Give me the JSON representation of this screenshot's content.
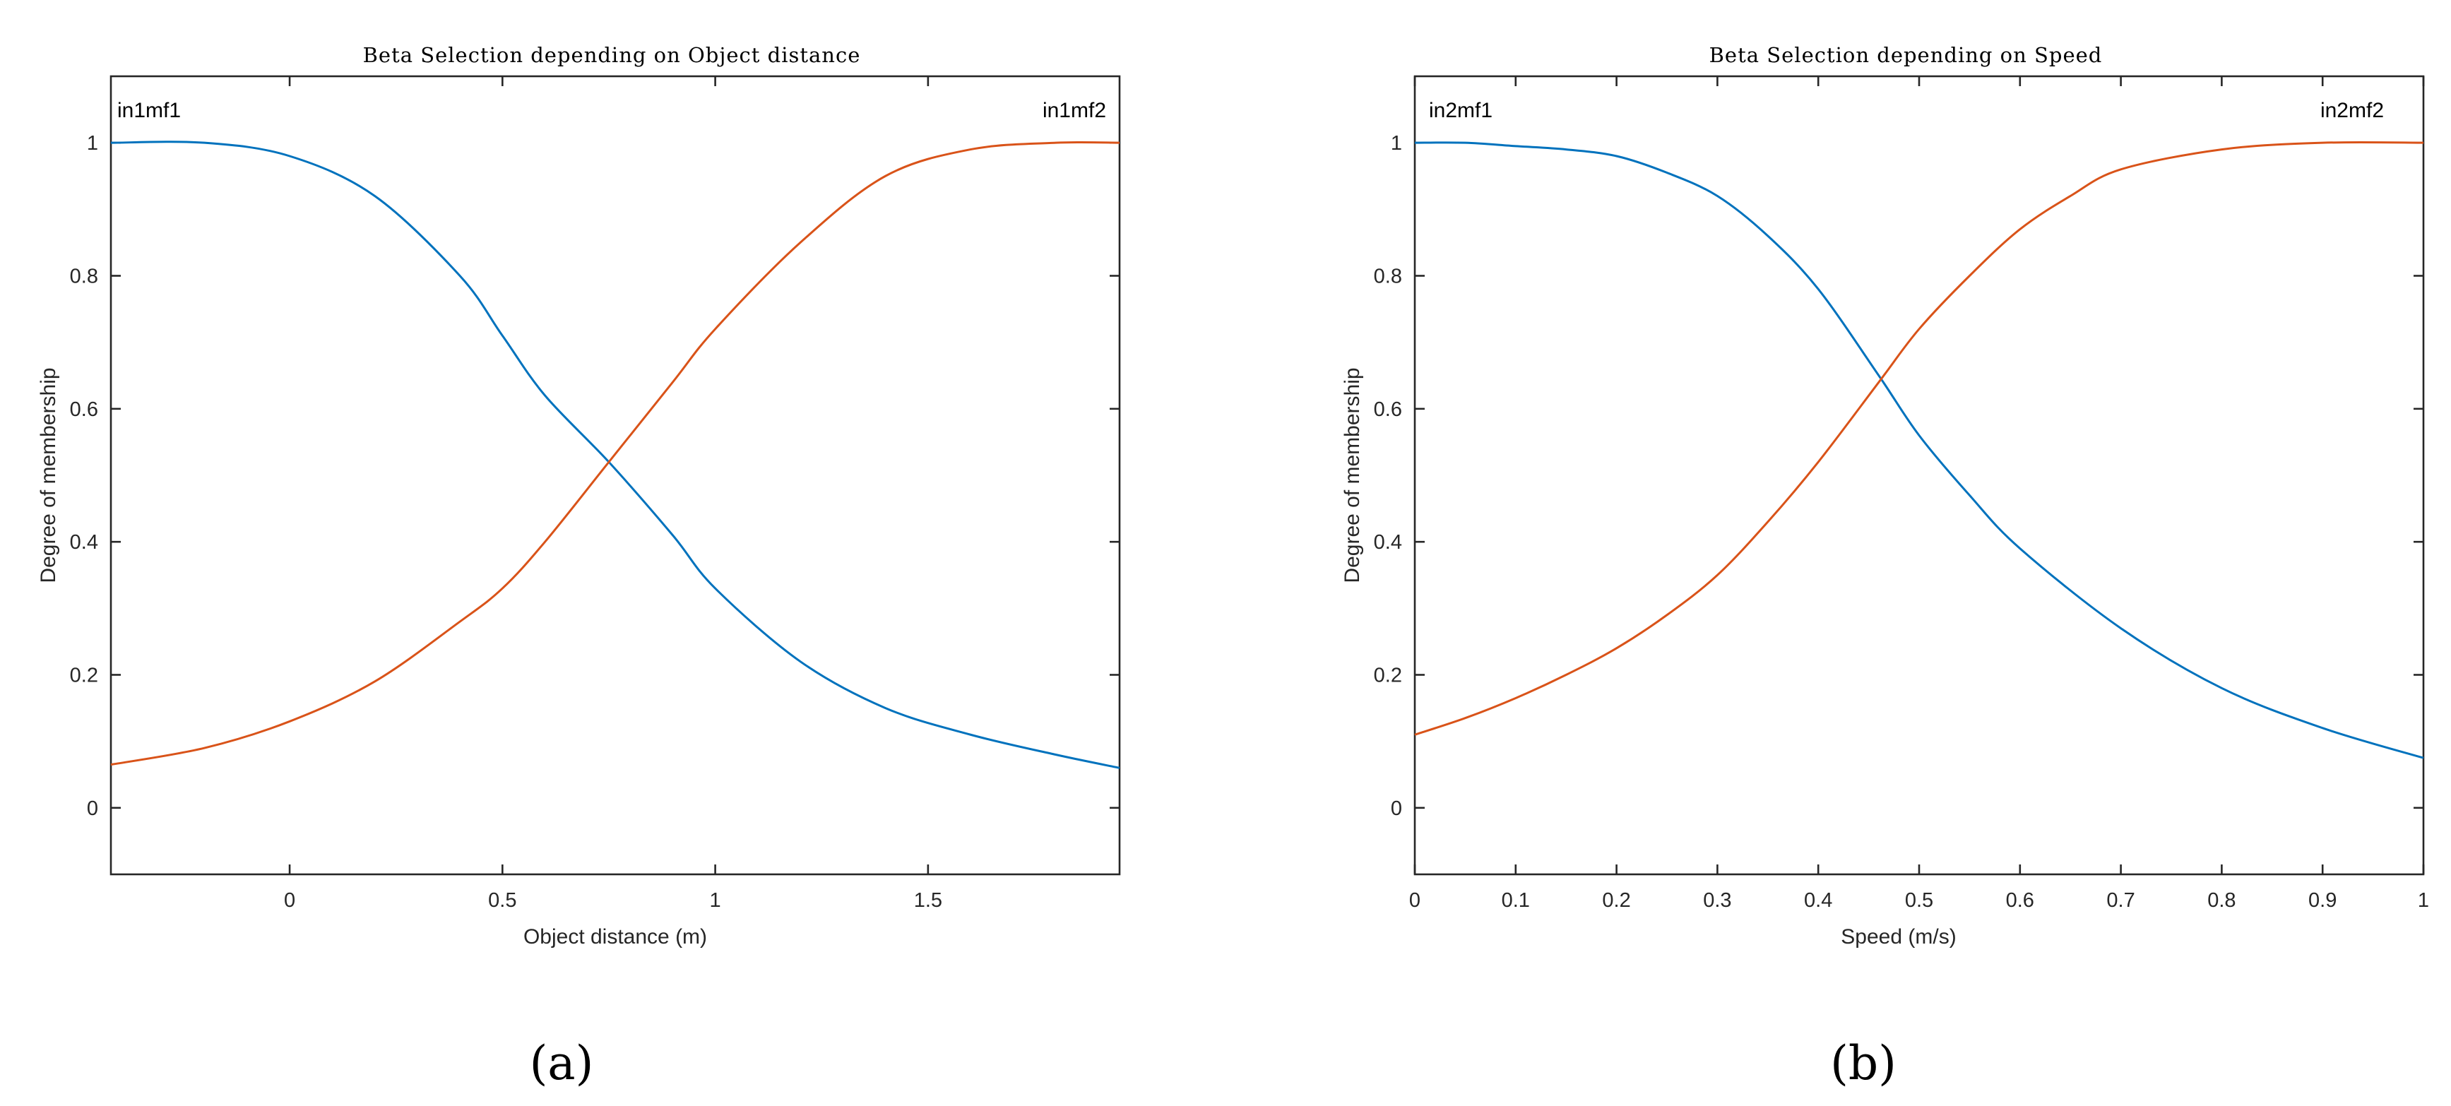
{
  "chart_data": [
    {
      "type": "line",
      "panel_label": "(a)",
      "title": "Beta Selection depending on Object distance",
      "xlabel": "Object distance (m)",
      "ylabel": "Degree of membership",
      "xlim": [
        -0.42,
        1.95
      ],
      "ylim": [
        -0.1,
        1.1
      ],
      "xticks": [
        0,
        0.5,
        1,
        1.5
      ],
      "xtick_labels": [
        "0",
        "0.5",
        "1",
        "1.5"
      ],
      "yticks": [
        0,
        0.2,
        0.4,
        0.6,
        0.8,
        1
      ],
      "ytick_labels": [
        "0",
        "0.2",
        "0.4",
        "0.6",
        "0.8",
        "1"
      ],
      "grid": false,
      "series": [
        {
          "name": "in1mf1",
          "color": "#0072BD",
          "x": [
            -0.42,
            -0.2,
            0,
            0.2,
            0.4,
            0.5,
            0.6,
            0.75,
            0.9,
            1.0,
            1.2,
            1.4,
            1.6,
            1.8,
            1.95
          ],
          "y": [
            1.0,
            1.0,
            0.98,
            0.92,
            0.8,
            0.71,
            0.62,
            0.52,
            0.41,
            0.33,
            0.22,
            0.15,
            0.11,
            0.08,
            0.06
          ]
        },
        {
          "name": "in1mf2",
          "color": "#D95319",
          "x": [
            -0.42,
            -0.2,
            0,
            0.2,
            0.4,
            0.5,
            0.6,
            0.75,
            0.9,
            1.0,
            1.2,
            1.4,
            1.6,
            1.8,
            1.95
          ],
          "y": [
            0.065,
            0.09,
            0.13,
            0.19,
            0.28,
            0.33,
            0.4,
            0.52,
            0.64,
            0.72,
            0.85,
            0.95,
            0.99,
            1.0,
            1.0
          ]
        }
      ]
    },
    {
      "type": "line",
      "panel_label": "(b)",
      "title": "Beta Selection depending on Speed",
      "xlabel": "Speed (m/s)",
      "ylabel": "Degree of membership",
      "xlim": [
        0,
        1
      ],
      "ylim": [
        -0.1,
        1.1
      ],
      "xticks": [
        0,
        0.1,
        0.2,
        0.3,
        0.4,
        0.5,
        0.6,
        0.7,
        0.8,
        0.9,
        1
      ],
      "xtick_labels": [
        "0",
        "0.1",
        "0.2",
        "0.3",
        "0.4",
        "0.5",
        "0.6",
        "0.7",
        "0.8",
        "0.9",
        "1"
      ],
      "yticks": [
        0,
        0.2,
        0.4,
        0.6,
        0.8,
        1
      ],
      "ytick_labels": [
        "0",
        "0.2",
        "0.4",
        "0.6",
        "0.8",
        "1"
      ],
      "grid": false,
      "series": [
        {
          "name": "in2mf1",
          "color": "#0072BD",
          "x": [
            0,
            0.05,
            0.1,
            0.15,
            0.2,
            0.25,
            0.3,
            0.35,
            0.4,
            0.46,
            0.5,
            0.55,
            0.6,
            0.7,
            0.8,
            0.9,
            1.0
          ],
          "y": [
            1.0,
            1.0,
            0.995,
            0.99,
            0.98,
            0.955,
            0.92,
            0.86,
            0.78,
            0.65,
            0.56,
            0.47,
            0.39,
            0.27,
            0.18,
            0.12,
            0.075
          ]
        },
        {
          "name": "in2mf2",
          "color": "#D95319",
          "x": [
            0,
            0.05,
            0.1,
            0.15,
            0.2,
            0.25,
            0.3,
            0.35,
            0.4,
            0.46,
            0.5,
            0.55,
            0.6,
            0.65,
            0.7,
            0.8,
            0.9,
            1.0
          ],
          "y": [
            0.11,
            0.135,
            0.165,
            0.2,
            0.24,
            0.29,
            0.35,
            0.43,
            0.52,
            0.64,
            0.72,
            0.8,
            0.87,
            0.92,
            0.96,
            0.99,
            1.0,
            1.0
          ]
        }
      ]
    }
  ]
}
